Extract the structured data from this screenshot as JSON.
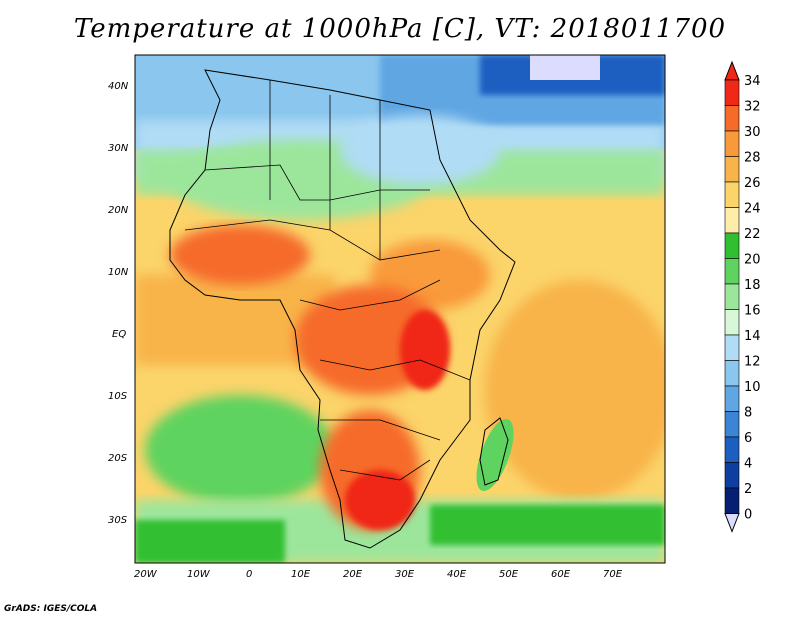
{
  "title": "Temperature at 1000hPa [C], VT: 2018011700",
  "credit": "GrADS: IGES/COLA",
  "lat_labels": [
    "40N",
    "30N",
    "20N",
    "10N",
    "EQ",
    "10S",
    "20S",
    "30S"
  ],
  "lon_labels": [
    "20W",
    "10W",
    "0",
    "10E",
    "20E",
    "30E",
    "40E",
    "50E",
    "60E",
    "70E"
  ],
  "colorbar": {
    "labels": [
      "34",
      "32",
      "30",
      "28",
      "26",
      "24",
      "22",
      "20",
      "18",
      "16",
      "14",
      "12",
      "10",
      "8",
      "6",
      "4",
      "2",
      "0"
    ],
    "colors": [
      "#f02818",
      "#f66a2a",
      "#f99a3a",
      "#f8b44a",
      "#fbd46a",
      "#fdeda8",
      "#30bf30",
      "#5fd35f",
      "#9ce69c",
      "#d8f7d8",
      "#b0dcf5",
      "#8ac6ee",
      "#5fa6e3",
      "#3b84d6",
      "#1c5fc1",
      "#0d3ea0",
      "#071f72",
      "#dcdcff"
    ]
  },
  "map_region": {
    "lon_min": -22,
    "lon_max": 80,
    "lat_min": -38,
    "lat_max": 45
  },
  "field": {
    "name": "Temperature at 1000hPa",
    "units": "C",
    "valid_time": "2018011700"
  }
}
